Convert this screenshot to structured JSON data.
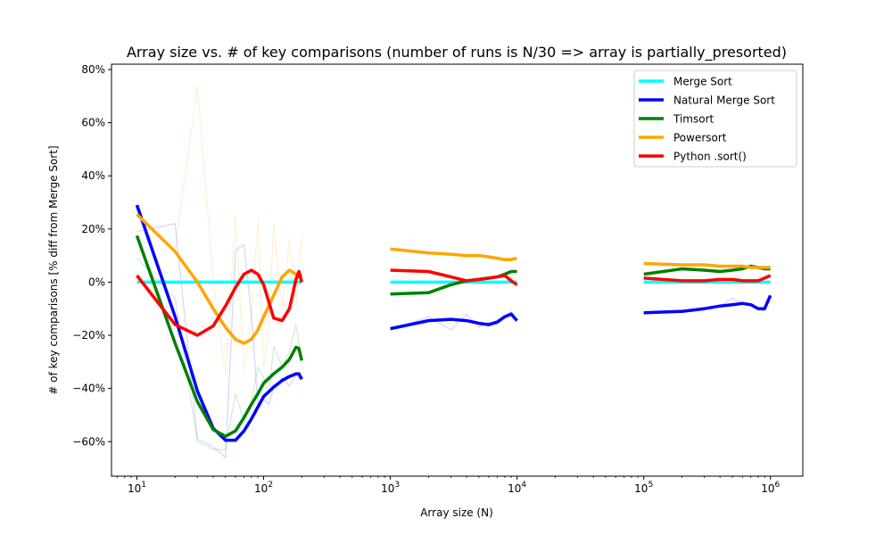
{
  "chart_data": {
    "type": "line",
    "title": "Array size vs. # of key comparisons (number of runs is N/30 => array is partially_presorted)",
    "xlabel": "Array size (N)",
    "ylabel": "# of key comparisons [% diff from Merge Sort]",
    "x_scale": "log",
    "xlim": [
      6.3,
      1800000
    ],
    "ylim": [
      -73,
      82
    ],
    "x_ticks": [
      {
        "value": 10,
        "base": "10",
        "exp": "1"
      },
      {
        "value": 100,
        "base": "10",
        "exp": "2"
      },
      {
        "value": 1000,
        "base": "10",
        "exp": "3"
      },
      {
        "value": 10000,
        "base": "10",
        "exp": "4"
      },
      {
        "value": 100000,
        "base": "10",
        "exp": "5"
      },
      {
        "value": 1000000,
        "base": "10",
        "exp": "6"
      }
    ],
    "y_ticks": [
      {
        "value": 80,
        "label": "80%"
      },
      {
        "value": 60,
        "label": "60%"
      },
      {
        "value": 40,
        "label": "40%"
      },
      {
        "value": 20,
        "label": "20%"
      },
      {
        "value": 0,
        "label": "0%"
      },
      {
        "value": -20,
        "label": "−20%"
      },
      {
        "value": -40,
        "label": "−40%"
      },
      {
        "value": -60,
        "label": "−60%"
      }
    ],
    "grid": false,
    "legend_position": "top-right",
    "series": [
      {
        "name": "Merge Sort",
        "color": "#00ffff",
        "segments": [
          {
            "x": [
              10,
              200
            ],
            "y": [
              0,
              0
            ]
          },
          {
            "x": [
              1000,
              10000
            ],
            "y": [
              0,
              0
            ]
          },
          {
            "x": [
              100000,
              1000000
            ],
            "y": [
              0,
              0
            ]
          }
        ],
        "raw_segments": []
      },
      {
        "name": "Natural Merge Sort",
        "color": "#0000ff",
        "segments": [
          {
            "x": [
              10,
              20,
              30,
              40,
              50,
              60,
              70,
              80,
              90,
              100,
              120,
              140,
              160,
              180,
              190,
              200
            ],
            "y": [
              29,
              -13,
              -41,
              -55,
              -59.5,
              -59.5,
              -56,
              -51.5,
              -47,
              -43,
              -39.5,
              -37,
              -35.5,
              -34.5,
              -34.5,
              -36.5
            ]
          },
          {
            "x": [
              1000,
              2000,
              3000,
              4000,
              5000,
              6000,
              7000,
              8000,
              9000,
              10000
            ],
            "y": [
              -17.5,
              -14.5,
              -14,
              -14.5,
              -15.5,
              -16,
              -15,
              -13,
              -12,
              -14.5
            ]
          },
          {
            "x": [
              100000,
              200000,
              300000,
              400000,
              500000,
              600000,
              700000,
              800000,
              900000,
              1000000
            ],
            "y": [
              -11.5,
              -11,
              -10,
              -9,
              -8.5,
              -8,
              -8.5,
              -10,
              -10,
              -5
            ]
          }
        ],
        "raw_segments": [
          {
            "x": [
              10,
              20,
              30,
              40,
              50,
              60,
              70,
              80,
              90,
              100,
              110,
              120,
              140,
              160,
              180,
              200
            ],
            "y": [
              19,
              22,
              -59,
              -62,
              -66,
              12,
              14,
              -12,
              -46,
              -44,
              -46,
              -40,
              -36,
              -39,
              -35,
              -37
            ]
          },
          {
            "x": [
              1000,
              2000,
              3000,
              4000,
              5000,
              6000,
              7000,
              8000,
              9000,
              10000
            ],
            "y": [
              -18,
              -13,
              -18,
              -12,
              -17,
              -15,
              -16,
              -13,
              -11,
              -15
            ]
          },
          {
            "x": [
              100000,
              200000,
              300000,
              400000,
              500000,
              600000,
              700000,
              800000,
              900000,
              1000000
            ],
            "y": [
              -12,
              -11,
              -10,
              -9,
              -6,
              -8,
              -9,
              -10,
              -11,
              -5
            ]
          }
        ]
      },
      {
        "name": "Timsort",
        "color": "#008000",
        "segments": [
          {
            "x": [
              10,
              20,
              30,
              40,
              50,
              60,
              70,
              80,
              90,
              100,
              120,
              140,
              160,
              180,
              190,
              200
            ],
            "y": [
              17.5,
              -23,
              -45,
              -55.5,
              -58,
              -56,
              -51,
              -46,
              -42,
              -38,
              -34.5,
              -32,
              -29,
              -24.5,
              -25,
              -29.5
            ]
          },
          {
            "x": [
              1000,
              2000,
              3000,
              4000,
              5000,
              6000,
              7000,
              8000,
              9000,
              10000
            ],
            "y": [
              -4.5,
              -4,
              -1,
              0.5,
              1,
              1.5,
              2,
              3,
              4,
              4
            ]
          },
          {
            "x": [
              100000,
              200000,
              300000,
              400000,
              500000,
              600000,
              700000,
              800000,
              900000,
              1000000
            ],
            "y": [
              3,
              5,
              4.5,
              4,
              4.5,
              5,
              6,
              5.5,
              5,
              5
            ]
          }
        ],
        "raw_segments": [
          {
            "x": [
              10,
              20,
              30,
              40,
              50,
              60,
              70,
              80,
              90,
              100,
              110,
              120,
              140,
              160,
              180,
              200
            ],
            "y": [
              9,
              -6,
              -60,
              -63,
              -63,
              -42,
              -52,
              -45,
              -32,
              -36,
              -42,
              -24,
              -32,
              -26,
              -16,
              -30
            ]
          }
        ]
      },
      {
        "name": "Powersort",
        "color": "#ffa500",
        "segments": [
          {
            "x": [
              10,
              20,
              30,
              40,
              50,
              60,
              70,
              80,
              90,
              100,
              120,
              140,
              160,
              180,
              190,
              200
            ],
            "y": [
              25.5,
              11.5,
              0,
              -10,
              -17,
              -21.5,
              -23,
              -21.5,
              -18,
              -13,
              -5,
              2,
              4.5,
              3,
              2,
              3
            ]
          },
          {
            "x": [
              1000,
              2000,
              3000,
              4000,
              5000,
              6000,
              7000,
              8000,
              9000,
              10000
            ],
            "y": [
              12.5,
              11,
              10.5,
              10,
              10,
              9.5,
              9,
              8.5,
              8.5,
              9
            ]
          },
          {
            "x": [
              100000,
              200000,
              300000,
              400000,
              500000,
              600000,
              700000,
              800000,
              900000,
              1000000
            ],
            "y": [
              7,
              6.5,
              6.5,
              6,
              6,
              6,
              5.5,
              5.5,
              5.5,
              5.5
            ]
          }
        ],
        "raw_segments": [
          {
            "x": [
              10,
              20,
              30,
              40,
              50,
              60,
              70,
              80,
              90,
              100,
              110,
              120,
              140,
              160,
              180,
              200
            ],
            "y": [
              25,
              12,
              74,
              1,
              -35,
              25,
              -33,
              -13,
              24,
              -32,
              -18,
              22,
              -9,
              16,
              -9,
              18
            ]
          }
        ]
      },
      {
        "name": "Python .sort()",
        "color": "#ff0000",
        "segments": [
          {
            "x": [
              10,
              20,
              30,
              40,
              50,
              60,
              70,
              80,
              90,
              100,
              120,
              140,
              160,
              180,
              190,
              200
            ],
            "y": [
              2.5,
              -16,
              -20,
              -16.5,
              -9,
              -2,
              3,
              4.5,
              3,
              -1,
              -13.5,
              -14.5,
              -10,
              1,
              4,
              0
            ]
          },
          {
            "x": [
              1000,
              2000,
              3000,
              4000,
              5000,
              6000,
              7000,
              8000,
              9000,
              10000
            ],
            "y": [
              4.5,
              4,
              2,
              0.5,
              1,
              1.5,
              2,
              2.5,
              0.5,
              -1
            ]
          },
          {
            "x": [
              100000,
              200000,
              300000,
              400000,
              500000,
              600000,
              700000,
              800000,
              900000,
              1000000
            ],
            "y": [
              1.5,
              0.5,
              0.5,
              1,
              1,
              0.5,
              0.5,
              0.5,
              1.5,
              2.5
            ]
          }
        ],
        "raw_segments": []
      }
    ]
  }
}
